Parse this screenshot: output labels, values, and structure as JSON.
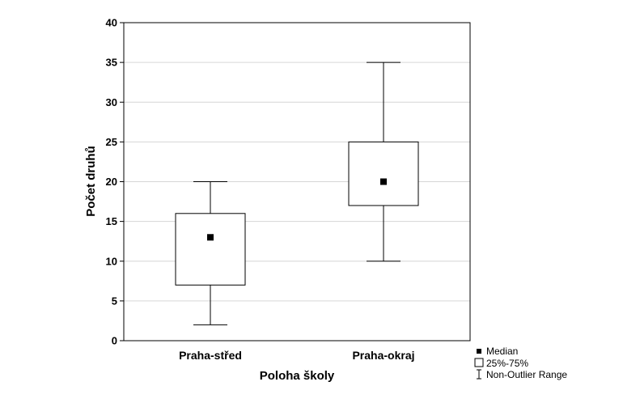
{
  "chart_data": {
    "type": "boxplot",
    "xlabel": "Poloha školy",
    "ylabel": "Počet druhů",
    "ylim": [
      0,
      40
    ],
    "yticks": [
      0,
      5,
      10,
      15,
      20,
      25,
      30,
      35,
      40
    ],
    "grid": true,
    "legend_position": "bottom-right",
    "categories": [
      "Praha-střed",
      "Praha-okraj"
    ],
    "boxes": [
      {
        "category": "Praha-střed",
        "median": 13,
        "q1": 7,
        "q3": 16,
        "min": 2,
        "max": 20
      },
      {
        "category": "Praha-okraj",
        "median": 20,
        "q1": 17,
        "q3": 25,
        "min": 10,
        "max": 35
      }
    ],
    "legend": {
      "median": "Median",
      "box": "25%-75%",
      "range": "Non-Outlier Range"
    }
  }
}
